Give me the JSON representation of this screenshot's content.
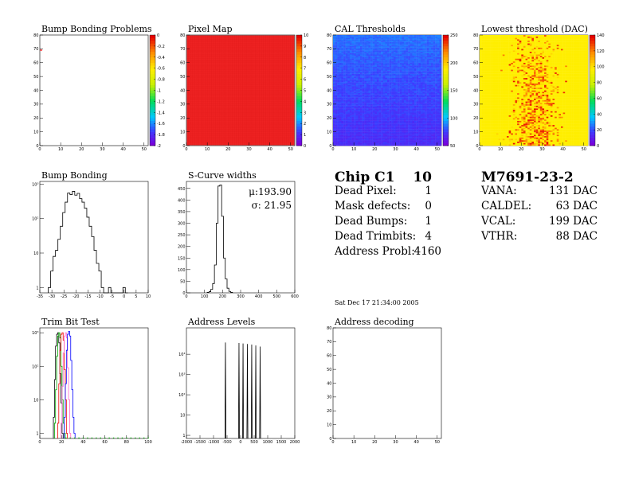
{
  "panels": {
    "bump_map": {
      "title": "Bump Bonding Problems"
    },
    "pixel_map": {
      "title": "Pixel Map"
    },
    "cal_thr": {
      "title": "CAL Thresholds"
    },
    "lowest_thr": {
      "title": "Lowest threshold (DAC)"
    },
    "bump_bond": {
      "title": "Bump Bonding"
    },
    "scurve": {
      "title": "S-Curve widths",
      "stat_mu": "μ:193.90",
      "stat_sigma": "σ: 21.95"
    },
    "trim": {
      "title": "Trim Bit Test"
    },
    "addr_levels": {
      "title": "Address Levels"
    },
    "addr_dec": {
      "title": "Address decoding"
    }
  },
  "chip_summary": {
    "chip": "Chip C1",
    "chip_num": "10",
    "rows": [
      {
        "label": "Dead Pixel:",
        "value": "1"
      },
      {
        "label": "Mask defects:",
        "value": "0"
      },
      {
        "label": "Dead Bumps:",
        "value": "1"
      },
      {
        "label": "Dead Trimbits:",
        "value": "4"
      },
      {
        "label": "Address Probl:",
        "value": "4160"
      }
    ]
  },
  "module_summary": {
    "module": "M7691-23-2",
    "rows": [
      {
        "label": "VANA:",
        "value": "131 DAC"
      },
      {
        "label": "CALDEL:",
        "value": "63 DAC"
      },
      {
        "label": "VCAL:",
        "value": "199 DAC"
      },
      {
        "label": "VTHR:",
        "value": "88 DAC"
      }
    ]
  },
  "date": "Sat Dec 17 21:34:00 2005",
  "colors": {
    "pixel_red": "#ee2222",
    "cal_blue": "#4a3ee6",
    "lowest_yellow": "#ffee10",
    "hist_line": "#000000"
  },
  "chart_data": [
    {
      "id": "bump_map",
      "type": "heatmap",
      "xlim": [
        0,
        52
      ],
      "ylim": [
        0,
        80
      ],
      "xticks": [
        "0",
        "10",
        "20",
        "30",
        "40",
        "50"
      ],
      "yticks": [
        "0",
        "10",
        "20",
        "30",
        "40",
        "50",
        "60",
        "70",
        "80"
      ],
      "zticks": [
        "0",
        "-0.2",
        "-0.4",
        "-0.6",
        "-0.8",
        "-1",
        "-1.2",
        "-1.4",
        "-1.6",
        "-1.8",
        "-2"
      ],
      "fill": "none",
      "marks": [
        {
          "x": 0.5,
          "y": 69
        }
      ]
    },
    {
      "id": "pixel_map",
      "type": "heatmap",
      "xlim": [
        0,
        52
      ],
      "ylim": [
        0,
        80
      ],
      "xticks": [
        "0",
        "10",
        "20",
        "30",
        "40",
        "50"
      ],
      "yticks": [
        "0",
        "10",
        "20",
        "30",
        "40",
        "50",
        "60",
        "70",
        "80"
      ],
      "zticks": [
        "0",
        "1",
        "2",
        "3",
        "4",
        "5",
        "6",
        "7",
        "8",
        "9",
        "10"
      ],
      "fill": "uniform",
      "value": 10
    },
    {
      "id": "cal_thr",
      "type": "heatmap",
      "xlim": [
        0,
        52
      ],
      "ylim": [
        0,
        80
      ],
      "xticks": [
        "0",
        "10",
        "20",
        "30",
        "40",
        "50"
      ],
      "yticks": [
        "0",
        "10",
        "20",
        "30",
        "40",
        "50",
        "60",
        "70",
        "80"
      ],
      "zticks": [
        "50",
        "100",
        "150",
        "200",
        "250"
      ],
      "zrange": [
        30,
        260
      ],
      "fill": "cal"
    },
    {
      "id": "lowest_thr",
      "type": "heatmap",
      "xlim": [
        0,
        52
      ],
      "ylim": [
        0,
        80
      ],
      "xticks": [
        "0",
        "10",
        "20",
        "30",
        "40",
        "50"
      ],
      "yticks": [
        "0",
        "10",
        "20",
        "30",
        "40",
        "50",
        "60",
        "70",
        "80"
      ],
      "zticks": [
        "0",
        "20",
        "40",
        "60",
        "80",
        "100",
        "120",
        "140"
      ],
      "zrange": [
        0,
        145
      ],
      "fill": "lowest"
    },
    {
      "id": "bump_bond",
      "type": "line",
      "step": true,
      "logy": true,
      "xlim": [
        -35,
        10
      ],
      "ylim": [
        0.7,
        1200
      ],
      "xticks": [
        "-35",
        "-30",
        "-25",
        "-20",
        "-15",
        "-10",
        "-5",
        "0",
        "5",
        "10"
      ],
      "xtick_values": [
        -35,
        -30,
        -25,
        -20,
        -15,
        -10,
        -5,
        0,
        5,
        10
      ],
      "yticks": [
        "1",
        "10",
        "10²",
        "10³"
      ],
      "ytick_values": [
        1,
        10,
        100,
        1000
      ],
      "x": [
        -31,
        -30,
        -29,
        -28,
        -27,
        -26,
        -25,
        -24,
        -23,
        -22,
        -21,
        -20,
        -19,
        -18,
        -17,
        -16,
        -15,
        -14,
        -13,
        -12,
        -11,
        -10,
        -9,
        -8,
        -7,
        -6,
        -5,
        -4,
        -3,
        -2,
        -1,
        0,
        1
      ],
      "y": [
        1,
        3,
        8,
        12,
        25,
        60,
        150,
        300,
        550,
        500,
        620,
        480,
        540,
        380,
        300,
        200,
        110,
        60,
        30,
        12,
        5,
        3,
        1,
        0,
        0,
        1,
        0,
        0,
        0,
        0,
        0,
        1,
        0
      ]
    },
    {
      "id": "scurve",
      "type": "line",
      "step": true,
      "xlim": [
        0,
        600
      ],
      "ylim": [
        0,
        480
      ],
      "xticks": [
        "0",
        "100",
        "200",
        "300",
        "400",
        "500",
        "600"
      ],
      "xtick_values": [
        0,
        100,
        200,
        300,
        400,
        500,
        600
      ],
      "yticks": [
        "0",
        "50",
        "100",
        "150",
        "200",
        "250",
        "300",
        "350",
        "400",
        "450"
      ],
      "ytick_values": [
        0,
        50,
        100,
        150,
        200,
        250,
        300,
        350,
        400,
        450
      ],
      "x": [
        120,
        130,
        140,
        150,
        160,
        170,
        180,
        190,
        200,
        210,
        220,
        230,
        240,
        250
      ],
      "y": [
        2,
        5,
        15,
        40,
        120,
        300,
        460,
        465,
        330,
        150,
        60,
        20,
        6,
        2
      ]
    },
    {
      "id": "trim",
      "type": "line",
      "step": true,
      "logy": true,
      "xlim": [
        0,
        100
      ],
      "ylim": [
        0.7,
        1400
      ],
      "xticks": [
        "0",
        "20",
        "40",
        "60",
        "80",
        "100"
      ],
      "xtick_values": [
        0,
        20,
        40,
        60,
        80,
        100
      ],
      "yticks": [
        "1",
        "10",
        "10²",
        "10³"
      ],
      "ytick_values": [
        1,
        10,
        100,
        1000
      ],
      "series": [
        {
          "color": "#000000",
          "x": [
            13,
            14,
            15,
            16,
            17,
            18,
            19,
            20,
            21
          ],
          "y": [
            3,
            40,
            400,
            900,
            1000,
            500,
            60,
            8,
            1
          ]
        },
        {
          "color": "#00aa00",
          "x": [
            14,
            15,
            16,
            17,
            18,
            19,
            20,
            21,
            22,
            23
          ],
          "y": [
            2,
            20,
            200,
            800,
            1000,
            700,
            100,
            10,
            2,
            1
          ]
        },
        {
          "color": "#ee0000",
          "x": [
            17,
            18,
            19,
            20,
            21,
            22,
            23,
            24,
            25
          ],
          "y": [
            2,
            30,
            300,
            900,
            1000,
            600,
            80,
            10,
            1
          ]
        },
        {
          "color": "#ff66cc",
          "x": [
            20,
            21,
            22,
            23,
            24,
            25,
            26,
            27,
            28
          ],
          "y": [
            2,
            25,
            250,
            800,
            1000,
            700,
            90,
            10,
            1
          ]
        },
        {
          "color": "#0000ff",
          "x": [
            23,
            24,
            25,
            26,
            27,
            28,
            29,
            30,
            31,
            32
          ],
          "y": [
            3,
            30,
            300,
            900,
            1100,
            800,
            150,
            20,
            3,
            1
          ]
        }
      ],
      "baseline_dots": {
        "color": "#00aa00",
        "from": 24,
        "to": 100,
        "step": 4
      }
    },
    {
      "id": "addr_levels",
      "type": "line",
      "step": true,
      "logy": true,
      "xlim": [
        -2000,
        2000
      ],
      "ylim": [
        0.7,
        200000
      ],
      "xticks": [
        "-2000",
        "-1500",
        "-1000",
        "-500",
        "0",
        "500",
        "1000",
        "1500",
        "2000"
      ],
      "xtick_values": [
        -2000,
        -1500,
        -1000,
        -500,
        0,
        500,
        1000,
        1500,
        2000
      ],
      "yticks": [
        "1",
        "10",
        "10²",
        "10³",
        "10⁴"
      ],
      "ytick_values": [
        1,
        10,
        100,
        1000,
        10000
      ],
      "peaks": [
        {
          "x": -560,
          "h": 38000
        },
        {
          "x": -60,
          "h": 36000
        },
        {
          "x": 90,
          "h": 34000
        },
        {
          "x": 250,
          "h": 32000
        },
        {
          "x": 410,
          "h": 30000
        },
        {
          "x": 560,
          "h": 27000
        },
        {
          "x": 720,
          "h": 24000
        }
      ]
    },
    {
      "id": "addr_dec",
      "type": "heatmap",
      "xlim": [
        0,
        52
      ],
      "ylim": [
        0,
        80
      ],
      "xticks": [
        "0",
        "10",
        "20",
        "30",
        "40",
        "50"
      ],
      "yticks": [
        "0",
        "10",
        "20",
        "30",
        "40",
        "50",
        "60",
        "70",
        "80"
      ],
      "fill": "none"
    }
  ]
}
